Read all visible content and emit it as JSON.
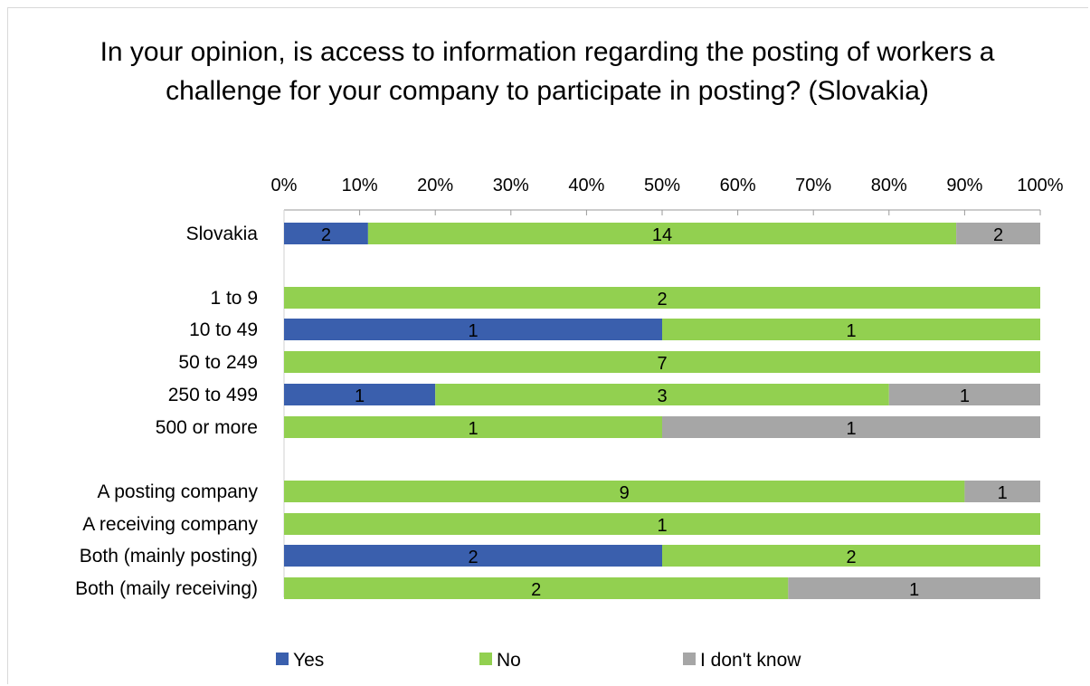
{
  "chart_data": {
    "type": "bar",
    "orientation": "horizontal",
    "stacked": "percent",
    "title": "In your opinion, is access to information regarding the posting of workers a challenge for your company to participate in posting? (Slovakia)",
    "xlim": [
      0,
      100
    ],
    "x_ticks": [
      "0%",
      "10%",
      "20%",
      "30%",
      "40%",
      "50%",
      "60%",
      "70%",
      "80%",
      "90%",
      "100%"
    ],
    "axis_position": "top",
    "legend_position": "bottom",
    "grid": false,
    "categories": [
      "Slovakia",
      "1 to 9",
      "10 to 49",
      "50 to 249",
      "250 to 499",
      "500 or more",
      "A posting company",
      "A receiving company",
      "Both (mainly posting)",
      "Both (maily receiving)"
    ],
    "groups": [
      [
        0
      ],
      [
        1,
        2,
        3,
        4,
        5
      ],
      [
        6,
        7,
        8,
        9
      ]
    ],
    "series": [
      {
        "name": "Yes",
        "color": "#3a5fad",
        "values": [
          2,
          0,
          1,
          0,
          1,
          0,
          0,
          0,
          2,
          0
        ]
      },
      {
        "name": "No",
        "color": "#92d050",
        "values": [
          14,
          2,
          1,
          7,
          3,
          1,
          9,
          1,
          2,
          2
        ]
      },
      {
        "name": "I don't know",
        "color": "#a6a6a6",
        "values": [
          2,
          0,
          0,
          0,
          1,
          1,
          1,
          0,
          0,
          1
        ]
      }
    ]
  }
}
